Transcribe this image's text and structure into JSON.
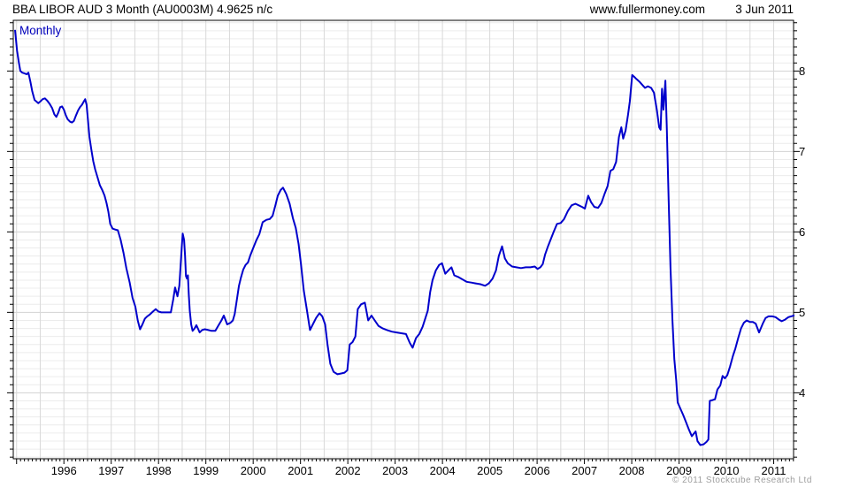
{
  "header": {
    "title": "BBA LIBOR AUD 3 Month (AU0003M) 4.9625 n/c",
    "site": "www.fullermoney.com",
    "date": "3 Jun 2011"
  },
  "chart": {
    "frequency_label": "Monthly",
    "copyright": "© 2011 Stockcube Research Ltd"
  },
  "colors": {
    "line": "#0000cc",
    "frequency_label": "#0000bb",
    "axis": "#000000",
    "grid_vertical": "#d9d9d9",
    "grid_minor_horizontal": "#ececec",
    "grid_major_horizontal": "#d2d2d2",
    "tick_label": "#000000",
    "copyright": "#9e9e9e",
    "background": "#ffffff"
  },
  "chart_data": {
    "type": "line",
    "title": "BBA LIBOR AUD 3 Month (AU0003M)",
    "last_value": "4.9625",
    "change": "n/c",
    "frequency": "Monthly",
    "grid": "on",
    "legend": "none",
    "x_tick_years": [
      1996,
      1997,
      1998,
      1999,
      2000,
      2001,
      2002,
      2003,
      2004,
      2005,
      2006,
      2007,
      2008,
      2009,
      2010,
      2011
    ],
    "y_tick_values": [
      4,
      5,
      6,
      7,
      8
    ],
    "x_range": [
      1994.93,
      2011.42
    ],
    "y_range": [
      3.18,
      8.63
    ],
    "y_minor_step": 0.1,
    "x_grid_step": 0.5,
    "series": [
      {
        "name": "BBA LIBOR AUD 3 Month (AU0003M)",
        "points": [
          [
            1994.97,
            8.5
          ],
          [
            1995.01,
            8.25
          ],
          [
            1995.05,
            8.1
          ],
          [
            1995.08,
            8.0
          ],
          [
            1995.12,
            7.98
          ],
          [
            1995.17,
            7.97
          ],
          [
            1995.21,
            7.96
          ],
          [
            1995.25,
            7.98
          ],
          [
            1995.29,
            7.87
          ],
          [
            1995.33,
            7.75
          ],
          [
            1995.38,
            7.64
          ],
          [
            1995.42,
            7.62
          ],
          [
            1995.46,
            7.6
          ],
          [
            1995.5,
            7.62
          ],
          [
            1995.55,
            7.65
          ],
          [
            1995.6,
            7.66
          ],
          [
            1995.65,
            7.63
          ],
          [
            1995.7,
            7.59
          ],
          [
            1995.75,
            7.54
          ],
          [
            1995.8,
            7.46
          ],
          [
            1995.84,
            7.43
          ],
          [
            1995.88,
            7.48
          ],
          [
            1995.92,
            7.55
          ],
          [
            1995.96,
            7.56
          ],
          [
            1996.0,
            7.52
          ],
          [
            1996.04,
            7.45
          ],
          [
            1996.08,
            7.4
          ],
          [
            1996.13,
            7.37
          ],
          [
            1996.17,
            7.36
          ],
          [
            1996.21,
            7.38
          ],
          [
            1996.25,
            7.44
          ],
          [
            1996.3,
            7.51
          ],
          [
            1996.34,
            7.55
          ],
          [
            1996.38,
            7.58
          ],
          [
            1996.42,
            7.62
          ],
          [
            1996.45,
            7.65
          ],
          [
            1996.48,
            7.58
          ],
          [
            1996.51,
            7.38
          ],
          [
            1996.54,
            7.18
          ],
          [
            1996.58,
            7.02
          ],
          [
            1996.62,
            6.88
          ],
          [
            1996.66,
            6.78
          ],
          [
            1996.71,
            6.68
          ],
          [
            1996.76,
            6.58
          ],
          [
            1996.81,
            6.52
          ],
          [
            1996.86,
            6.45
          ],
          [
            1996.9,
            6.36
          ],
          [
            1996.94,
            6.25
          ],
          [
            1996.98,
            6.1
          ],
          [
            1997.03,
            6.04
          ],
          [
            1997.08,
            6.03
          ],
          [
            1997.14,
            6.02
          ],
          [
            1997.2,
            5.9
          ],
          [
            1997.26,
            5.74
          ],
          [
            1997.32,
            5.55
          ],
          [
            1997.39,
            5.37
          ],
          [
            1997.45,
            5.18
          ],
          [
            1997.51,
            5.07
          ],
          [
            1997.56,
            4.9
          ],
          [
            1997.61,
            4.79
          ],
          [
            1997.66,
            4.85
          ],
          [
            1997.71,
            4.92
          ],
          [
            1997.76,
            4.95
          ],
          [
            1997.81,
            4.97
          ],
          [
            1997.88,
            5.01
          ],
          [
            1997.94,
            5.04
          ],
          [
            1998.0,
            5.01
          ],
          [
            1998.06,
            5.0
          ],
          [
            1998.13,
            5.0
          ],
          [
            1998.2,
            5.0
          ],
          [
            1998.26,
            5.0
          ],
          [
            1998.31,
            5.16
          ],
          [
            1998.35,
            5.31
          ],
          [
            1998.4,
            5.2
          ],
          [
            1998.44,
            5.33
          ],
          [
            1998.49,
            5.8
          ],
          [
            1998.51,
            5.98
          ],
          [
            1998.54,
            5.9
          ],
          [
            1998.56,
            5.7
          ],
          [
            1998.58,
            5.45
          ],
          [
            1998.6,
            5.42
          ],
          [
            1998.62,
            5.46
          ],
          [
            1998.64,
            5.22
          ],
          [
            1998.66,
            5.02
          ],
          [
            1998.69,
            4.85
          ],
          [
            1998.72,
            4.77
          ],
          [
            1998.76,
            4.8
          ],
          [
            1998.8,
            4.84
          ],
          [
            1998.84,
            4.79
          ],
          [
            1998.87,
            4.75
          ],
          [
            1998.92,
            4.78
          ],
          [
            1998.98,
            4.79
          ],
          [
            1999.05,
            4.78
          ],
          [
            1999.12,
            4.77
          ],
          [
            1999.2,
            4.77
          ],
          [
            1999.27,
            4.84
          ],
          [
            1999.33,
            4.9
          ],
          [
            1999.38,
            4.96
          ],
          [
            1999.45,
            4.85
          ],
          [
            1999.52,
            4.87
          ],
          [
            1999.57,
            4.9
          ],
          [
            1999.61,
            4.98
          ],
          [
            1999.65,
            5.14
          ],
          [
            1999.7,
            5.33
          ],
          [
            1999.74,
            5.43
          ],
          [
            1999.79,
            5.53
          ],
          [
            1999.84,
            5.59
          ],
          [
            1999.89,
            5.62
          ],
          [
            1999.94,
            5.71
          ],
          [
            2000.0,
            5.8
          ],
          [
            2000.07,
            5.9
          ],
          [
            2000.13,
            5.97
          ],
          [
            2000.2,
            6.12
          ],
          [
            2000.28,
            6.15
          ],
          [
            2000.35,
            6.16
          ],
          [
            2000.41,
            6.2
          ],
          [
            2000.47,
            6.33
          ],
          [
            2000.52,
            6.45
          ],
          [
            2000.58,
            6.52
          ],
          [
            2000.63,
            6.55
          ],
          [
            2000.7,
            6.47
          ],
          [
            2000.77,
            6.35
          ],
          [
            2000.84,
            6.17
          ],
          [
            2000.9,
            6.05
          ],
          [
            2000.96,
            5.85
          ],
          [
            2001.01,
            5.6
          ],
          [
            2001.07,
            5.27
          ],
          [
            2001.13,
            5.05
          ],
          [
            2001.2,
            4.78
          ],
          [
            2001.26,
            4.85
          ],
          [
            2001.33,
            4.93
          ],
          [
            2001.4,
            4.99
          ],
          [
            2001.46,
            4.95
          ],
          [
            2001.52,
            4.85
          ],
          [
            2001.57,
            4.6
          ],
          [
            2001.63,
            4.36
          ],
          [
            2001.7,
            4.26
          ],
          [
            2001.78,
            4.23
          ],
          [
            2001.86,
            4.24
          ],
          [
            2001.93,
            4.25
          ],
          [
            2001.99,
            4.28
          ],
          [
            2002.04,
            4.6
          ],
          [
            2002.1,
            4.63
          ],
          [
            2002.16,
            4.7
          ],
          [
            2002.21,
            5.04
          ],
          [
            2002.28,
            5.1
          ],
          [
            2002.36,
            5.12
          ],
          [
            2002.43,
            4.9
          ],
          [
            2002.5,
            4.96
          ],
          [
            2002.57,
            4.9
          ],
          [
            2002.65,
            4.83
          ],
          [
            2002.74,
            4.8
          ],
          [
            2002.83,
            4.78
          ],
          [
            2002.93,
            4.76
          ],
          [
            2003.03,
            4.75
          ],
          [
            2003.13,
            4.74
          ],
          [
            2003.23,
            4.73
          ],
          [
            2003.31,
            4.62
          ],
          [
            2003.37,
            4.56
          ],
          [
            2003.44,
            4.68
          ],
          [
            2003.51,
            4.73
          ],
          [
            2003.58,
            4.82
          ],
          [
            2003.64,
            4.93
          ],
          [
            2003.69,
            5.02
          ],
          [
            2003.74,
            5.25
          ],
          [
            2003.79,
            5.4
          ],
          [
            2003.86,
            5.52
          ],
          [
            2003.93,
            5.59
          ],
          [
            2003.99,
            5.61
          ],
          [
            2004.06,
            5.48
          ],
          [
            2004.14,
            5.53
          ],
          [
            2004.19,
            5.56
          ],
          [
            2004.25,
            5.46
          ],
          [
            2004.33,
            5.44
          ],
          [
            2004.42,
            5.41
          ],
          [
            2004.51,
            5.38
          ],
          [
            2004.61,
            5.37
          ],
          [
            2004.7,
            5.36
          ],
          [
            2004.8,
            5.35
          ],
          [
            2004.9,
            5.33
          ],
          [
            2004.98,
            5.36
          ],
          [
            2005.06,
            5.42
          ],
          [
            2005.13,
            5.52
          ],
          [
            2005.19,
            5.7
          ],
          [
            2005.26,
            5.82
          ],
          [
            2005.32,
            5.67
          ],
          [
            2005.38,
            5.61
          ],
          [
            2005.47,
            5.57
          ],
          [
            2005.56,
            5.56
          ],
          [
            2005.66,
            5.55
          ],
          [
            2005.76,
            5.56
          ],
          [
            2005.86,
            5.56
          ],
          [
            2005.95,
            5.57
          ],
          [
            2006.01,
            5.54
          ],
          [
            2006.07,
            5.56
          ],
          [
            2006.12,
            5.6
          ],
          [
            2006.17,
            5.72
          ],
          [
            2006.23,
            5.82
          ],
          [
            2006.29,
            5.91
          ],
          [
            2006.35,
            6.0
          ],
          [
            2006.42,
            6.1
          ],
          [
            2006.5,
            6.11
          ],
          [
            2006.57,
            6.16
          ],
          [
            2006.65,
            6.26
          ],
          [
            2006.73,
            6.33
          ],
          [
            2006.81,
            6.35
          ],
          [
            2006.88,
            6.33
          ],
          [
            2006.95,
            6.31
          ],
          [
            2007.01,
            6.29
          ],
          [
            2007.08,
            6.45
          ],
          [
            2007.14,
            6.37
          ],
          [
            2007.21,
            6.31
          ],
          [
            2007.29,
            6.3
          ],
          [
            2007.36,
            6.36
          ],
          [
            2007.43,
            6.48
          ],
          [
            2007.49,
            6.57
          ],
          [
            2007.55,
            6.76
          ],
          [
            2007.61,
            6.78
          ],
          [
            2007.67,
            6.87
          ],
          [
            2007.73,
            7.18
          ],
          [
            2007.78,
            7.3
          ],
          [
            2007.82,
            7.16
          ],
          [
            2007.87,
            7.26
          ],
          [
            2007.92,
            7.45
          ],
          [
            2007.96,
            7.62
          ],
          [
            2008.01,
            7.95
          ],
          [
            2008.05,
            7.93
          ],
          [
            2008.1,
            7.9
          ],
          [
            2008.16,
            7.87
          ],
          [
            2008.22,
            7.83
          ],
          [
            2008.28,
            7.79
          ],
          [
            2008.34,
            7.81
          ],
          [
            2008.41,
            7.79
          ],
          [
            2008.47,
            7.73
          ],
          [
            2008.53,
            7.52
          ],
          [
            2008.58,
            7.3
          ],
          [
            2008.61,
            7.27
          ],
          [
            2008.64,
            7.78
          ],
          [
            2008.67,
            7.52
          ],
          [
            2008.71,
            7.88
          ],
          [
            2008.74,
            7.3
          ],
          [
            2008.78,
            6.4
          ],
          [
            2008.82,
            5.55
          ],
          [
            2008.86,
            4.9
          ],
          [
            2008.9,
            4.42
          ],
          [
            2008.94,
            4.15
          ],
          [
            2008.97,
            3.88
          ],
          [
            2009.03,
            3.8
          ],
          [
            2009.09,
            3.72
          ],
          [
            2009.15,
            3.63
          ],
          [
            2009.21,
            3.54
          ],
          [
            2009.27,
            3.46
          ],
          [
            2009.31,
            3.49
          ],
          [
            2009.35,
            3.52
          ],
          [
            2009.39,
            3.4
          ],
          [
            2009.45,
            3.35
          ],
          [
            2009.52,
            3.36
          ],
          [
            2009.58,
            3.39
          ],
          [
            2009.62,
            3.42
          ],
          [
            2009.65,
            3.9
          ],
          [
            2009.71,
            3.91
          ],
          [
            2009.76,
            3.92
          ],
          [
            2009.81,
            4.04
          ],
          [
            2009.87,
            4.09
          ],
          [
            2009.92,
            4.21
          ],
          [
            2009.97,
            4.18
          ],
          [
            2010.02,
            4.22
          ],
          [
            2010.08,
            4.33
          ],
          [
            2010.14,
            4.46
          ],
          [
            2010.19,
            4.55
          ],
          [
            2010.25,
            4.68
          ],
          [
            2010.31,
            4.8
          ],
          [
            2010.37,
            4.87
          ],
          [
            2010.43,
            4.9
          ],
          [
            2010.5,
            4.88
          ],
          [
            2010.56,
            4.88
          ],
          [
            2010.62,
            4.86
          ],
          [
            2010.69,
            4.75
          ],
          [
            2010.77,
            4.86
          ],
          [
            2010.83,
            4.93
          ],
          [
            2010.89,
            4.95
          ],
          [
            2010.97,
            4.95
          ],
          [
            2011.04,
            4.94
          ],
          [
            2011.11,
            4.91
          ],
          [
            2011.17,
            4.89
          ],
          [
            2011.24,
            4.91
          ],
          [
            2011.31,
            4.94
          ],
          [
            2011.37,
            4.95
          ],
          [
            2011.42,
            4.96
          ]
        ]
      }
    ]
  }
}
